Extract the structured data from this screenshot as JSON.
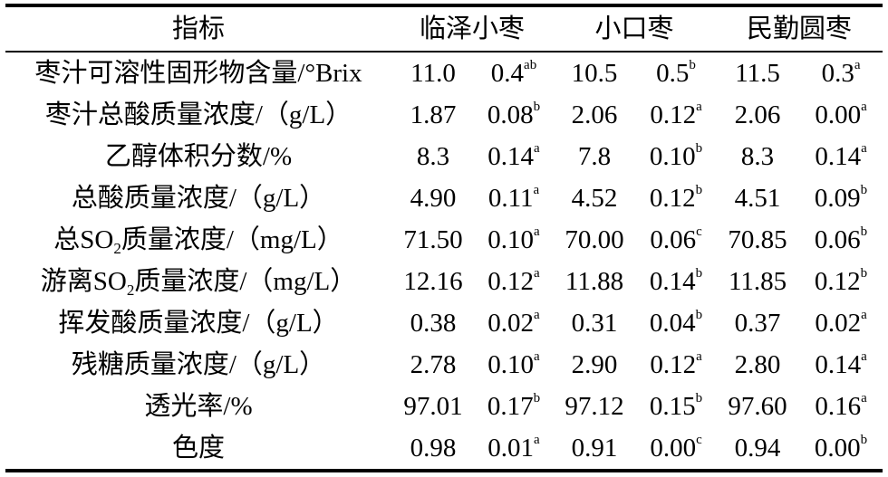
{
  "table": {
    "headers": [
      "指标",
      "临泽小枣",
      "小口枣",
      "民勤圆枣"
    ],
    "rows": [
      {
        "name": "枣汁可溶性固形物含量/°Brix",
        "cells": [
          {
            "mean": "11.0",
            "sd": "0.4",
            "sig": "ab"
          },
          {
            "mean": "10.5",
            "sd": "0.5",
            "sig": "b"
          },
          {
            "mean": "11.5",
            "sd": "0.3",
            "sig": "a"
          }
        ]
      },
      {
        "name": "枣汁总酸质量浓度/（g/L）",
        "cells": [
          {
            "mean": "1.87",
            "sd": "0.08",
            "sig": "b"
          },
          {
            "mean": "2.06",
            "sd": "0.12",
            "sig": "a"
          },
          {
            "mean": "2.06",
            "sd": "0.00",
            "sig": "a"
          }
        ]
      },
      {
        "name": "乙醇体积分数/%",
        "cells": [
          {
            "mean": "8.3",
            "sd": "0.14",
            "sig": "a"
          },
          {
            "mean": "7.8",
            "sd": "0.10",
            "sig": "b"
          },
          {
            "mean": "8.3",
            "sd": "0.14",
            "sig": "a"
          }
        ]
      },
      {
        "name": "总酸质量浓度/（g/L）",
        "cells": [
          {
            "mean": "4.90",
            "sd": "0.11",
            "sig": "a"
          },
          {
            "mean": "4.52",
            "sd": "0.12",
            "sig": "b"
          },
          {
            "mean": "4.51",
            "sd": "0.09",
            "sig": "b"
          }
        ]
      },
      {
        "name_parts": [
          "总SO",
          "2",
          "质量浓度/（mg/L）"
        ],
        "cells": [
          {
            "mean": "71.50",
            "sd": "0.10",
            "sig": "a"
          },
          {
            "mean": "70.00",
            "sd": "0.06",
            "sig": "c"
          },
          {
            "mean": "70.85",
            "sd": "0.06",
            "sig": "b"
          }
        ]
      },
      {
        "name_parts": [
          "游离SO",
          "2",
          "质量浓度/（mg/L）"
        ],
        "cells": [
          {
            "mean": "12.16",
            "sd": "0.12",
            "sig": "a"
          },
          {
            "mean": "11.88",
            "sd": "0.14",
            "sig": "b"
          },
          {
            "mean": "11.85",
            "sd": "0.12",
            "sig": "b"
          }
        ]
      },
      {
        "name": "挥发酸质量浓度/（g/L）",
        "cells": [
          {
            "mean": "0.38",
            "sd": "0.02",
            "sig": "a"
          },
          {
            "mean": "0.31",
            "sd": "0.04",
            "sig": "b"
          },
          {
            "mean": "0.37",
            "sd": "0.02",
            "sig": "a"
          }
        ]
      },
      {
        "name": "残糖质量浓度/（g/L）",
        "cells": [
          {
            "mean": "2.78",
            "sd": "0.10",
            "sig": "a"
          },
          {
            "mean": "2.90",
            "sd": "0.12",
            "sig": "a"
          },
          {
            "mean": "2.80",
            "sd": "0.14",
            "sig": "a"
          }
        ]
      },
      {
        "name": "透光率/%",
        "cells": [
          {
            "mean": "97.01",
            "sd": "0.17",
            "sig": "b"
          },
          {
            "mean": "97.12",
            "sd": "0.15",
            "sig": "b"
          },
          {
            "mean": "97.60",
            "sd": "0.16",
            "sig": "a"
          }
        ]
      },
      {
        "name": "色度",
        "cells": [
          {
            "mean": "0.98",
            "sd": "0.01",
            "sig": "a"
          },
          {
            "mean": "0.91",
            "sd": "0.00",
            "sig": "c"
          },
          {
            "mean": "0.94",
            "sd": "0.00",
            "sig": "b"
          }
        ]
      }
    ]
  }
}
